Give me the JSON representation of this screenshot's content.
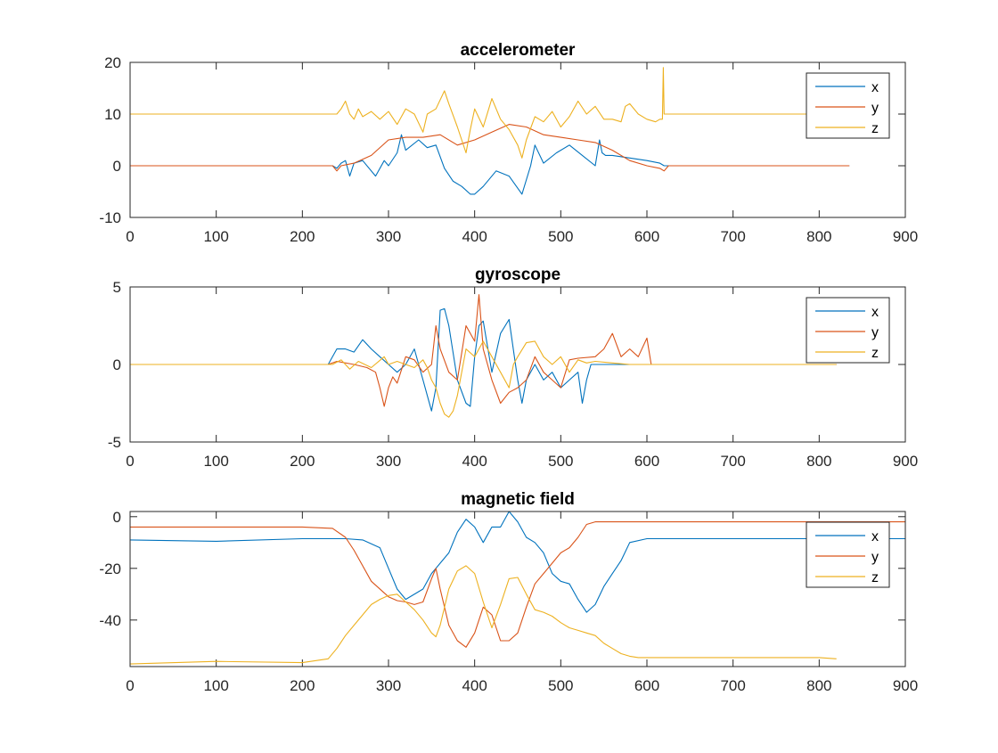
{
  "chart_data": [
    {
      "type": "line",
      "title": "accelerometer",
      "xlabel": "",
      "ylabel": "",
      "xlim": [
        0,
        900
      ],
      "ylim": [
        -10,
        20
      ],
      "xticks": [
        0,
        100,
        200,
        300,
        400,
        500,
        600,
        700,
        800,
        900
      ],
      "yticks": [
        -10,
        0,
        10,
        20
      ],
      "grid": false,
      "legend_position": "top-right",
      "series": [
        {
          "name": "x",
          "color": "#0072BD",
          "x": [
            0,
            235,
            240,
            245,
            250,
            255,
            260,
            270,
            285,
            295,
            300,
            310,
            315,
            320,
            335,
            345,
            355,
            365,
            375,
            385,
            395,
            400,
            410,
            425,
            440,
            455,
            465,
            470,
            480,
            495,
            510,
            525,
            540,
            545,
            548,
            552,
            560,
            580,
            600,
            615,
            620,
            625,
            650,
            700,
            750,
            800,
            830,
            835
          ],
          "y": [
            0,
            0,
            -0.5,
            0.5,
            1,
            -2,
            0.5,
            1,
            -2,
            1,
            0,
            2.5,
            6,
            3,
            5,
            3.5,
            4,
            -0.5,
            -3,
            -4,
            -5.5,
            -5.5,
            -4,
            -1,
            -2,
            -5.5,
            0,
            4,
            0.5,
            2.5,
            4,
            2,
            0,
            5,
            2.5,
            2,
            2,
            1.5,
            1,
            0.5,
            0,
            0,
            0,
            0,
            0,
            0,
            0,
            0
          ]
        },
        {
          "name": "y",
          "color": "#D95319",
          "x": [
            0,
            235,
            240,
            245,
            260,
            280,
            300,
            320,
            340,
            360,
            380,
            400,
            420,
            440,
            460,
            480,
            500,
            520,
            540,
            560,
            580,
            600,
            615,
            620,
            625,
            650,
            700,
            750,
            800,
            830,
            835
          ],
          "y": [
            0,
            0,
            -1,
            0,
            0.5,
            2,
            5,
            5.5,
            5.5,
            6,
            4,
            5,
            6.5,
            8,
            7.5,
            6,
            5.5,
            5,
            4.5,
            3,
            1,
            0,
            -0.5,
            -1,
            0,
            0,
            0,
            0,
            0,
            0,
            0
          ]
        },
        {
          "name": "z",
          "color": "#EDB120",
          "x": [
            0,
            240,
            245,
            250,
            255,
            260,
            265,
            270,
            280,
            290,
            300,
            310,
            320,
            330,
            340,
            345,
            355,
            365,
            370,
            380,
            390,
            395,
            400,
            410,
            420,
            430,
            440,
            450,
            455,
            460,
            470,
            480,
            490,
            500,
            510,
            520,
            530,
            540,
            550,
            560,
            570,
            575,
            580,
            590,
            600,
            610,
            615,
            618,
            619,
            620,
            625,
            650,
            700,
            750,
            800,
            835
          ],
          "y": [
            10,
            10,
            11,
            12.5,
            10,
            9,
            11,
            9.5,
            10.5,
            9,
            10.5,
            8,
            11,
            10,
            6.5,
            10,
            11,
            14.5,
            12,
            7.5,
            2.5,
            7,
            11,
            7.5,
            13,
            9,
            7,
            4,
            1.5,
            5,
            9.5,
            8.5,
            10.5,
            7.5,
            9.5,
            12.5,
            10,
            11.5,
            9,
            9,
            8.5,
            11.5,
            12,
            10,
            9,
            8.5,
            9,
            9,
            19,
            10,
            10,
            10,
            10,
            10,
            10,
            10
          ]
        }
      ]
    },
    {
      "type": "line",
      "title": "gyroscope",
      "xlabel": "",
      "ylabel": "",
      "xlim": [
        0,
        900
      ],
      "ylim": [
        -5,
        5
      ],
      "xticks": [
        0,
        100,
        200,
        300,
        400,
        500,
        600,
        700,
        800,
        900
      ],
      "yticks": [
        -5,
        0,
        5
      ],
      "grid": false,
      "legend_position": "top-right",
      "series": [
        {
          "name": "x",
          "color": "#0072BD",
          "x": [
            0,
            230,
            240,
            250,
            260,
            270,
            280,
            290,
            300,
            310,
            320,
            330,
            340,
            350,
            355,
            360,
            365,
            370,
            380,
            390,
            395,
            400,
            405,
            410,
            420,
            430,
            440,
            450,
            455,
            460,
            470,
            480,
            490,
            500,
            510,
            520,
            525,
            530,
            535,
            540,
            600,
            610,
            820
          ],
          "y": [
            0,
            0,
            1,
            1,
            0.8,
            1.6,
            1,
            0.5,
            0,
            -0.5,
            0,
            1,
            -1,
            -3,
            -1.5,
            3.5,
            3.6,
            2.5,
            -1,
            -2.5,
            -2.7,
            0.5,
            2.5,
            2.8,
            -0.5,
            2,
            2.9,
            -1,
            -2.5,
            -1,
            0,
            -1,
            -0.5,
            -1.5,
            -1,
            -0.5,
            -2.5,
            -1,
            0,
            0,
            0,
            0,
            0
          ]
        },
        {
          "name": "y",
          "color": "#D95319",
          "x": [
            0,
            200,
            230,
            240,
            260,
            275,
            285,
            290,
            295,
            300,
            305,
            310,
            320,
            330,
            340,
            350,
            355,
            360,
            370,
            380,
            390,
            400,
            405,
            410,
            420,
            430,
            440,
            450,
            460,
            470,
            480,
            490,
            500,
            510,
            520,
            540,
            550,
            560,
            570,
            580,
            590,
            600,
            605,
            607,
            820
          ],
          "y": [
            0,
            0,
            0,
            0.2,
            0,
            -0.2,
            -0.5,
            -1.5,
            -2.7,
            -1.5,
            -0.8,
            -1.2,
            0.5,
            0.3,
            -0.5,
            0,
            2.5,
            1,
            -0.5,
            -1,
            2.5,
            1.5,
            4.5,
            1,
            -1,
            -2.5,
            -1.8,
            -1.5,
            -1,
            0.5,
            -0.5,
            -1,
            -1.5,
            0.3,
            0.4,
            0.5,
            1,
            2,
            0.5,
            1,
            0.5,
            1.7,
            0,
            0,
            0
          ]
        },
        {
          "name": "z",
          "color": "#EDB120",
          "x": [
            0,
            235,
            245,
            255,
            265,
            280,
            295,
            300,
            310,
            320,
            330,
            340,
            345,
            350,
            355,
            360,
            365,
            370,
            375,
            380,
            390,
            400,
            410,
            420,
            430,
            440,
            445,
            450,
            460,
            470,
            480,
            490,
            500,
            510,
            520,
            530,
            540,
            560,
            580,
            600,
            610,
            820
          ],
          "y": [
            0,
            0,
            0.3,
            -0.3,
            0.2,
            -0.2,
            0.5,
            0,
            0.2,
            0,
            -0.2,
            0.3,
            -0.2,
            -1,
            -1.5,
            -2.5,
            -3.2,
            -3.4,
            -3,
            -2,
            1,
            0.5,
            1.5,
            0.5,
            -0.5,
            -1.5,
            0,
            0.5,
            1.4,
            1.5,
            0.5,
            0,
            0.5,
            -0.5,
            0.3,
            0.1,
            0.2,
            0.1,
            0,
            0,
            0,
            0
          ]
        }
      ]
    },
    {
      "type": "line",
      "title": "magnetic field",
      "xlabel": "",
      "ylabel": "",
      "xlim": [
        0,
        900
      ],
      "ylim": [
        -58,
        2
      ],
      "xticks": [
        0,
        100,
        200,
        300,
        400,
        500,
        600,
        700,
        800,
        900
      ],
      "yticks": [
        -40,
        -20,
        0
      ],
      "grid": false,
      "legend_position": "top-right",
      "series": [
        {
          "name": "x",
          "color": "#0072BD",
          "x": [
            0,
            100,
            200,
            250,
            270,
            290,
            300,
            310,
            320,
            340,
            350,
            360,
            370,
            380,
            390,
            400,
            410,
            420,
            430,
            440,
            450,
            460,
            470,
            480,
            490,
            500,
            510,
            520,
            530,
            540,
            550,
            560,
            570,
            580,
            600,
            650,
            700,
            750,
            800,
            830,
            860,
            900
          ],
          "y": [
            -9,
            -9.5,
            -8.5,
            -8.5,
            -9,
            -12,
            -20,
            -28,
            -32,
            -28,
            -22,
            -18,
            -14,
            -6,
            -1,
            -4,
            -10,
            -4,
            -4,
            2,
            -2,
            -8,
            -10,
            -14,
            -22,
            -25,
            -26,
            -32,
            -37,
            -34,
            -27,
            -22,
            -17,
            -10,
            -8.5,
            -8.5,
            -8.5,
            -8.5,
            -8.5,
            -8.5,
            -8.5,
            -8.5
          ]
        },
        {
          "name": "y",
          "color": "#D95319",
          "x": [
            0,
            100,
            200,
            235,
            250,
            260,
            280,
            300,
            310,
            320,
            330,
            340,
            350,
            355,
            360,
            370,
            380,
            390,
            400,
            410,
            420,
            430,
            440,
            450,
            460,
            470,
            480,
            490,
            500,
            510,
            520,
            530,
            540,
            550,
            560,
            570,
            580,
            600,
            650,
            700,
            800,
            900
          ],
          "y": [
            -4,
            -4,
            -4,
            -4.5,
            -8,
            -13,
            -25,
            -31,
            -32.5,
            -33,
            -34,
            -33,
            -24,
            -20,
            -28,
            -42,
            -48,
            -50.5,
            -45,
            -35,
            -38,
            -48,
            -48,
            -45,
            -35,
            -26,
            -22,
            -18,
            -14,
            -12,
            -8,
            -3,
            -2,
            -2,
            -2,
            -2,
            -2,
            -2,
            -2,
            -2,
            -2,
            -2
          ]
        },
        {
          "name": "z",
          "color": "#EDB120",
          "x": [
            0,
            100,
            200,
            230,
            240,
            250,
            260,
            270,
            280,
            290,
            300,
            310,
            320,
            330,
            340,
            350,
            355,
            360,
            370,
            380,
            390,
            400,
            410,
            420,
            430,
            440,
            450,
            460,
            470,
            480,
            490,
            500,
            510,
            520,
            530,
            540,
            550,
            560,
            570,
            580,
            590,
            600,
            650,
            700,
            750,
            800,
            820
          ],
          "y": [
            -57,
            -56,
            -56.5,
            -55,
            -51,
            -46,
            -42,
            -38,
            -34,
            -32,
            -30.5,
            -30,
            -33,
            -36,
            -40,
            -45,
            -46.5,
            -42,
            -28,
            -21,
            -19,
            -22,
            -33,
            -43,
            -34,
            -24,
            -23.5,
            -30,
            -36,
            -37,
            -38.5,
            -41,
            -43,
            -44,
            -45,
            -46,
            -49,
            -51,
            -53,
            -54,
            -54.5,
            -54.5,
            -54.5,
            -54.5,
            -54.5,
            -54.5,
            -55
          ]
        }
      ]
    }
  ]
}
